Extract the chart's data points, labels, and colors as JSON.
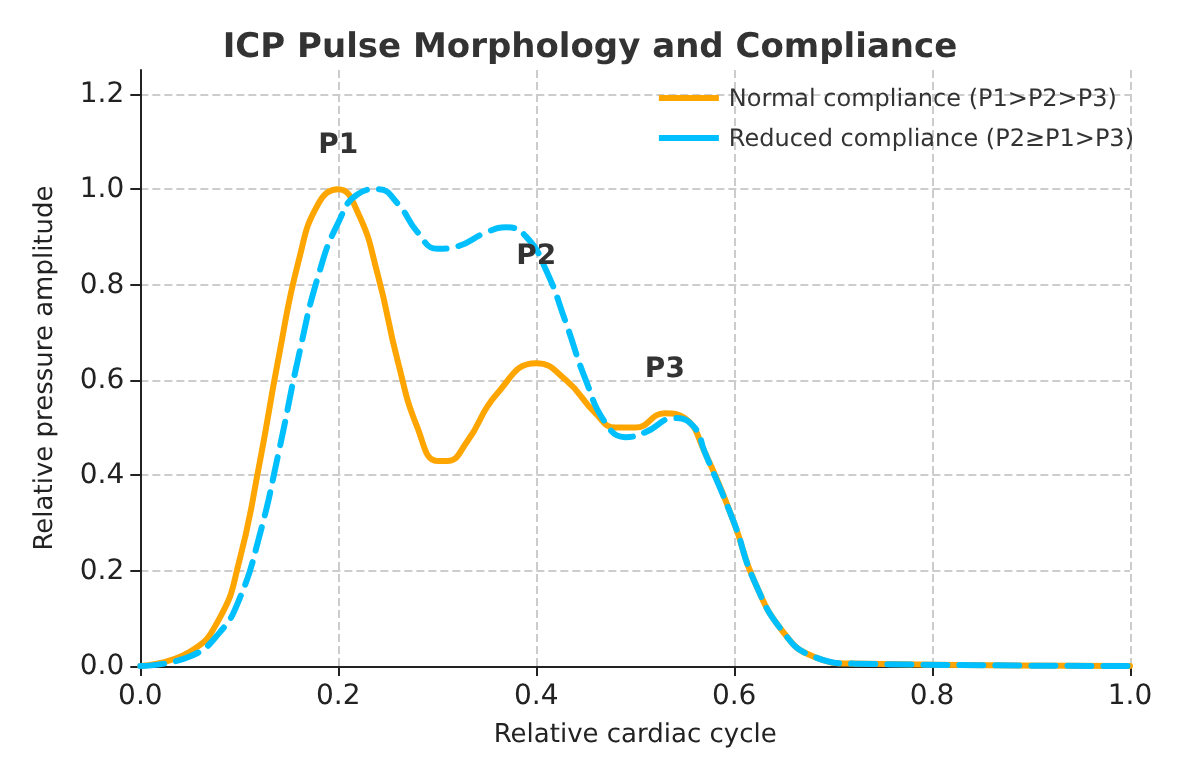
{
  "chart_data": {
    "type": "line",
    "title": "ICP Pulse Morphology and Compliance",
    "xlabel": "Relative cardiac cycle",
    "ylabel": "Relative pressure amplitude",
    "xlim": [
      0,
      1
    ],
    "xticks": [
      {
        "value": 0,
        "label": "0.0"
      },
      0.2,
      0.4,
      0.6,
      0.8,
      {
        "value": 1,
        "label": "1.0"
      }
    ],
    "ylim": [
      0,
      1.25
    ],
    "yticks": [
      {
        "value": 0,
        "label": "0.0"
      },
      0.2,
      0.4,
      0.6,
      0.8,
      {
        "value": 1,
        "label": "1.0"
      },
      1.2
    ],
    "grid": true,
    "legend": "top right",
    "marker": "none",
    "annotations": [
      {
        "text": "P1",
        "x": 0.2,
        "y": 1.0
      },
      {
        "text": "P2",
        "x": 0.4,
        "y": 0.86
      },
      {
        "text": "P3",
        "x": 0.53,
        "y": 0.53
      }
    ],
    "series": [
      {
        "name": "Normal compliance (P1>P2>P3)",
        "color": "#ffa500",
        "line_style": "solid",
        "x": [
          0,
          0.05,
          0.08,
          0.1,
          0.12,
          0.14,
          0.16,
          0.18,
          0.2,
          0.22,
          0.24,
          0.26,
          0.28,
          0.3,
          0.31,
          0.33,
          0.36,
          0.4,
          0.43,
          0.46,
          0.48,
          0.5,
          0.53,
          0.55,
          0.57,
          0.6,
          0.62,
          0.65,
          0.68,
          0.72,
          1
        ],
        "values": [
          0,
          0.03,
          0.1,
          0.22,
          0.42,
          0.65,
          0.85,
          0.97,
          1,
          0.95,
          0.82,
          0.64,
          0.5,
          0.43,
          0.43,
          0.47,
          0.57,
          0.635,
          0.6,
          0.53,
          0.5,
          0.5,
          0.53,
          0.52,
          0.45,
          0.3,
          0.18,
          0.07,
          0.02,
          0.005,
          0
        ]
      },
      {
        "name": "Reduced compliance (P2≥P1>P3)",
        "color": "#00bfff",
        "line_style": "dashed",
        "x": [
          0,
          0.05,
          0.08,
          0.1,
          0.12,
          0.14,
          0.16,
          0.18,
          0.2,
          0.22,
          0.24,
          0.26,
          0.28,
          0.3,
          0.32,
          0.35,
          0.37,
          0.39,
          0.41,
          0.43,
          0.45,
          0.47,
          0.49,
          0.51,
          0.54,
          0.56,
          0.57,
          0.6,
          0.62,
          0.65,
          0.68,
          0.72,
          1
        ],
        "values": [
          0,
          0.02,
          0.07,
          0.14,
          0.27,
          0.45,
          0.65,
          0.82,
          0.93,
          0.99,
          1,
          0.97,
          0.91,
          0.875,
          0.88,
          0.91,
          0.92,
          0.9,
          0.83,
          0.72,
          0.6,
          0.51,
          0.48,
          0.49,
          0.52,
          0.5,
          0.45,
          0.3,
          0.18,
          0.07,
          0.02,
          0.005,
          0
        ]
      }
    ]
  }
}
